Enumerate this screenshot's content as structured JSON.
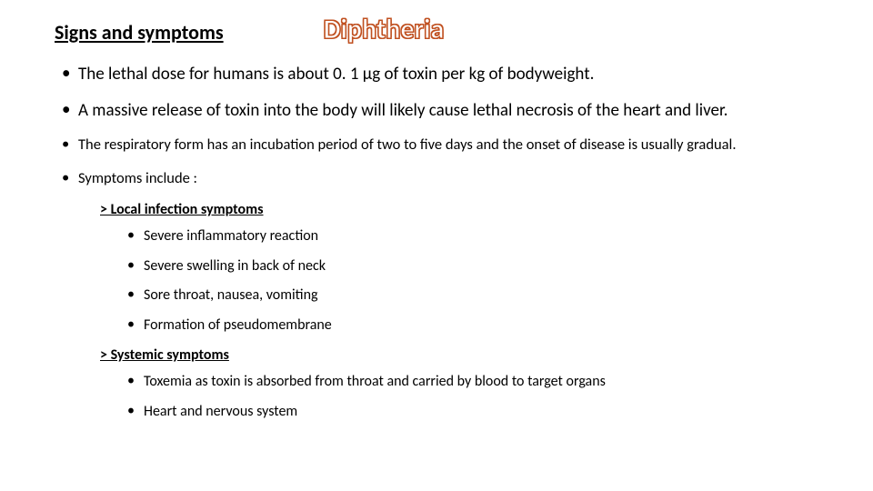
{
  "header": {
    "section_title": "Signs and symptoms",
    "main_title": "Diphtheria"
  },
  "bullets": {
    "b1": "The lethal dose for humans is about 0. 1 µg of toxin per kg of bodyweight.",
    "b2": "A massive release of toxin into the body will likely cause lethal necrosis of the heart and liver.",
    "b3": "The respiratory form has an incubation period of two to five days and the onset of disease is usually gradual.",
    "b4": "Symptoms include :"
  },
  "local": {
    "header": "> Local infection symptoms",
    "items": {
      "i1": "Severe inflammatory reaction",
      "i2": "Severe swelling in back of neck",
      "i3": "Sore throat, nausea, vomiting",
      "i4": "Formation of pseudomembrane"
    }
  },
  "systemic": {
    "header": "> Systemic symptoms",
    "items": {
      "i1": "Toxemia as toxin is absorbed from throat and carried by blood to target organs",
      "i2": "Heart and nervous system"
    }
  }
}
